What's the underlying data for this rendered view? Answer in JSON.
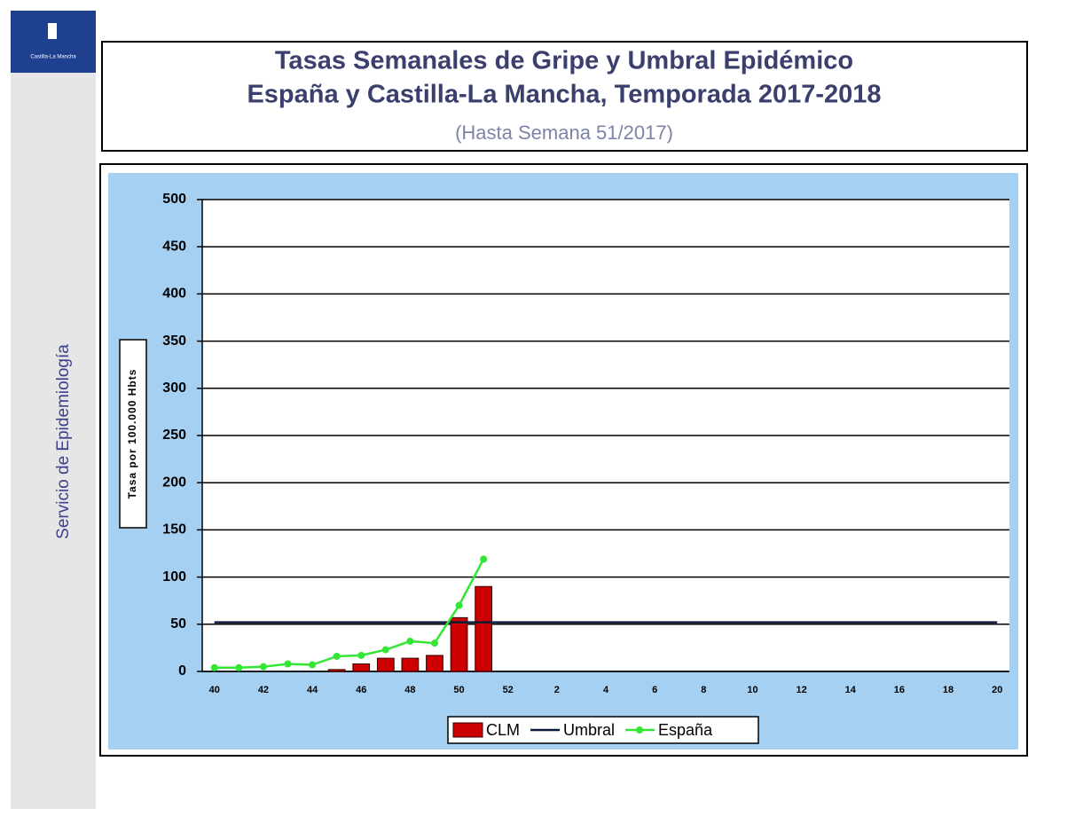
{
  "logo": "Castilla-La Mancha",
  "sidebar": "Servicio de Epidemiología",
  "chart_data": {
    "type": "combo",
    "title": [
      "Tasas  Semanales de Gripe y Umbral Epidémico",
      "España y Castilla-La Mancha, Temporada 2017-2018"
    ],
    "subtitle": "(Hasta Semana 51/2017)",
    "y_label": "Tasa por 100.000 Hbts",
    "categories": [
      40,
      null,
      42,
      null,
      44,
      null,
      46,
      null,
      48,
      null,
      50,
      null,
      52,
      null,
      2,
      null,
      4,
      null,
      6,
      null,
      8,
      null,
      10,
      null,
      12,
      null,
      14,
      null,
      16,
      null,
      18,
      null,
      20
    ],
    "series": [
      {
        "name": "CLM",
        "type": "bar",
        "color": "#cc0000",
        "values": [
          0,
          0,
          0,
          0,
          0,
          2,
          8,
          14,
          14,
          17,
          57,
          90,
          null,
          null,
          null,
          null,
          null,
          null,
          null,
          null,
          null,
          null,
          null,
          null,
          null,
          null,
          null,
          null,
          null,
          null,
          null,
          null,
          null
        ]
      },
      {
        "name": "Umbral",
        "type": "line",
        "color": "#0b1a3a",
        "values": [
          52,
          52,
          52,
          52,
          52,
          52,
          52,
          52,
          52,
          52,
          52,
          52,
          52,
          52,
          52,
          52,
          52,
          52,
          52,
          52,
          52,
          52,
          52,
          52,
          52,
          52,
          52,
          52,
          52,
          52,
          52,
          52,
          52
        ]
      },
      {
        "name": "España",
        "type": "line",
        "color": "#33e633",
        "markers": true,
        "values": [
          4,
          4,
          5,
          8,
          7,
          16,
          17,
          23,
          32,
          30,
          70,
          119,
          null,
          null,
          null,
          null,
          null,
          null,
          null,
          null,
          null,
          null,
          null,
          null,
          null,
          null,
          null,
          null,
          null,
          null,
          null,
          null,
          null
        ]
      }
    ],
    "ylim": [
      0,
      500
    ],
    "yticks": [
      0,
      50,
      100,
      150,
      200,
      250,
      300,
      350,
      400,
      450,
      500
    ],
    "grid": true,
    "legend": "bottom"
  }
}
